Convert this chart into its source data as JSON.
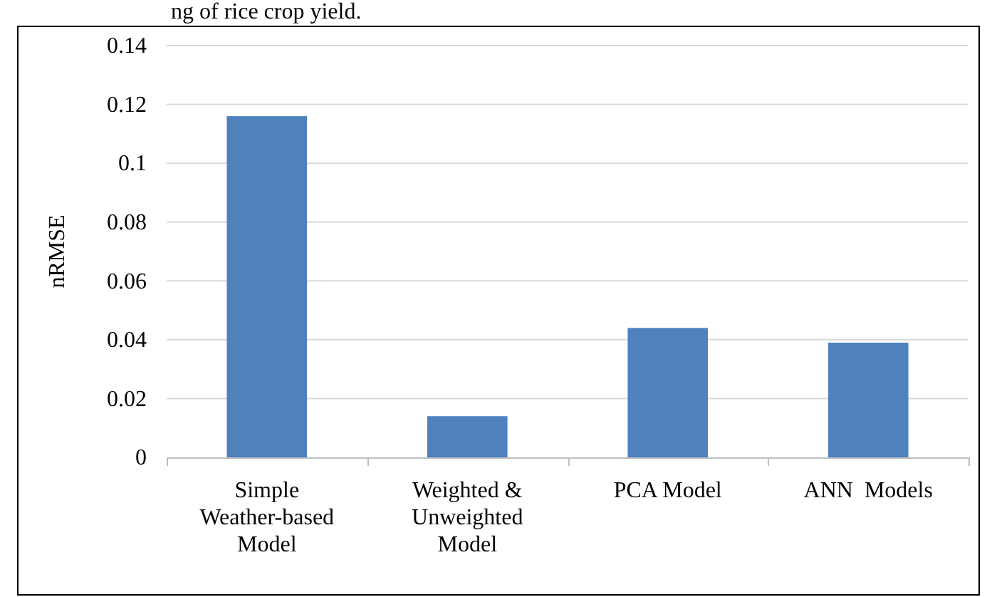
{
  "chart_data": {
    "type": "bar",
    "ylabel": "nRMSE",
    "categories": [
      "Simple Weather-based Model",
      "Weighted & Unweighted Model",
      "PCA Model",
      "ANN  Models"
    ],
    "values": [
      0.116,
      0.014,
      0.044,
      0.039
    ],
    "color": "#4f81bd",
    "ylim": [
      0,
      0.14
    ],
    "yticks": [
      0,
      0.02,
      0.04,
      0.06,
      0.08,
      0.1,
      0.12,
      0.14
    ],
    "grid": "y",
    "annotations": [
      "ng of rice crop yield."
    ]
  }
}
